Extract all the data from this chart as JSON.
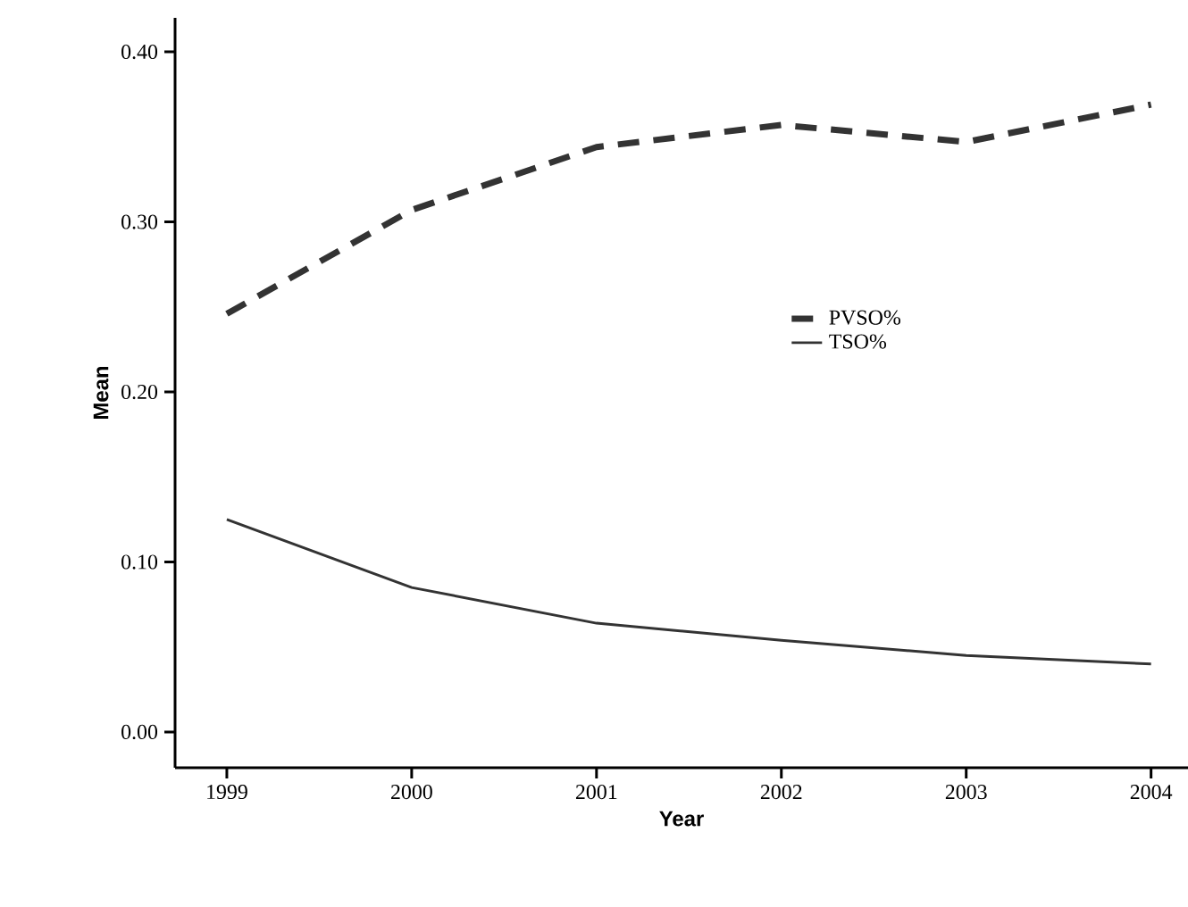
{
  "chart_data": {
    "type": "line",
    "xlabel": "Year",
    "ylabel": "Mean",
    "x": [
      1999,
      2000,
      2001,
      2002,
      2003,
      2004
    ],
    "series": [
      {
        "name": "PVSO%",
        "color": "#333333",
        "line_style": "dashed",
        "values": [
          0.246,
          0.307,
          0.344,
          0.357,
          0.347,
          0.369
        ]
      },
      {
        "name": "TSO%",
        "color": "#333333",
        "line_style": "solid",
        "values": [
          0.125,
          0.085,
          0.064,
          0.054,
          0.045,
          0.04
        ]
      }
    ],
    "xlim": [
      1998.72,
      2004.2
    ],
    "ylim": [
      -0.021,
      0.42
    ],
    "xticks": [
      1999,
      2000,
      2001,
      2002,
      2003,
      2004
    ],
    "yticks": [
      {
        "value": 0,
        "label": "0.00"
      },
      {
        "value": 0.1,
        "label": "0.10"
      },
      {
        "value": 0.2,
        "label": "0.20"
      },
      {
        "value": 0.3,
        "label": "0.30"
      },
      {
        "value": 0.4,
        "label": "0.40"
      }
    ],
    "grid": false,
    "legend": "right",
    "marker": "none"
  }
}
